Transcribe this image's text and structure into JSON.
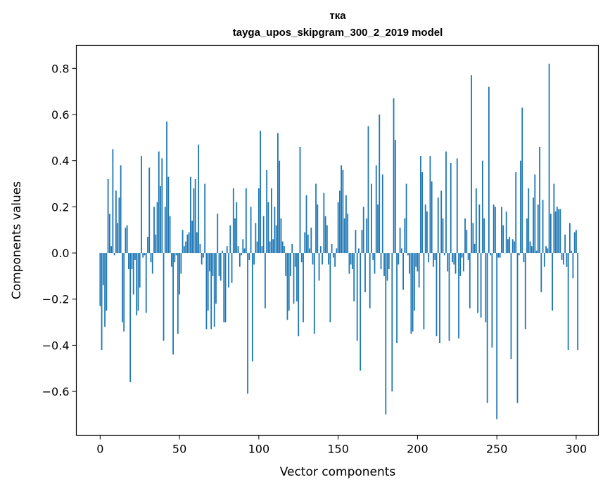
{
  "chart_data": {
    "type": "bar",
    "title": "тка",
    "subtitle": "tayga_upos_skipgram_300_2_2019 model",
    "xlabel": "Vector components",
    "ylabel": "Components values",
    "xlim": [
      -15,
      314
    ],
    "ylim": [
      -0.79,
      0.9
    ],
    "xticks": [
      0,
      50,
      100,
      150,
      200,
      250,
      300
    ],
    "yticks": [
      -0.6,
      -0.4,
      -0.2,
      0.0,
      0.2,
      0.4,
      0.6,
      0.8
    ],
    "xtick_labels": [
      "0",
      "50",
      "100",
      "150",
      "200",
      "250",
      "300"
    ],
    "ytick_labels": [
      "−0.6",
      "−0.4",
      "−0.2",
      "0.0",
      "0.2",
      "0.4",
      "0.6",
      "0.8"
    ],
    "bar_color": "#1f77b4",
    "grid": false,
    "values": [
      -0.23,
      -0.42,
      -0.14,
      -0.32,
      -0.25,
      0.32,
      0.17,
      0.03,
      0.45,
      -0.01,
      0.27,
      0.13,
      0.24,
      0.38,
      -0.3,
      -0.34,
      0.11,
      0.12,
      -0.07,
      -0.56,
      -0.07,
      -0.18,
      -0.03,
      -0.27,
      -0.25,
      -0.15,
      0.42,
      -0.02,
      -0.01,
      -0.26,
      0.07,
      0.37,
      -0.04,
      -0.09,
      0.2,
      0.08,
      0.22,
      0.44,
      0.29,
      0.41,
      -0.38,
      0.2,
      0.57,
      0.33,
      0.16,
      -0.06,
      -0.44,
      -0.04,
      -0.01,
      -0.35,
      -0.18,
      -0.09,
      0.1,
      0.03,
      0.05,
      0.08,
      0.09,
      0.33,
      0.14,
      0.28,
      0.32,
      0.09,
      0.47,
      0.04,
      -0.05,
      -0.02,
      0.3,
      -0.33,
      -0.25,
      -0.08,
      -0.33,
      -0.1,
      -0.32,
      -0.22,
      0.17,
      -0.1,
      -0.12,
      0.01,
      -0.3,
      -0.3,
      0.03,
      -0.15,
      0.12,
      -0.13,
      0.28,
      0.15,
      0.22,
      0.03,
      -0.06,
      -0.01,
      0.06,
      0.02,
      0.28,
      -0.61,
      -0.03,
      0.2,
      -0.47,
      -0.05,
      0.13,
      0.05,
      0.28,
      0.53,
      0.03,
      0.16,
      -0.24,
      0.36,
      0.22,
      0.05,
      0.28,
      0.06,
      0.2,
      0.12,
      0.52,
      0.4,
      0.15,
      0.05,
      0.03,
      -0.1,
      -0.29,
      -0.25,
      -0.1,
      0.04,
      -0.22,
      -0.06,
      -0.21,
      -0.36,
      0.46,
      -0.04,
      -0.3,
      0.09,
      0.25,
      0.08,
      0.02,
      0.11,
      -0.05,
      -0.35,
      0.3,
      0.21,
      -0.12,
      0.03,
      -0.05,
      0.26,
      0.16,
      0.12,
      -0.05,
      -0.3,
      0.04,
      -0.02,
      -0.06,
      0.02,
      0.22,
      0.27,
      0.38,
      0.36,
      0.15,
      0.25,
      0.17,
      -0.09,
      -0.05,
      -0.07,
      -0.21,
      0.1,
      -0.38,
      0.02,
      -0.51,
      0.1,
      0.2,
      -0.17,
      0.15,
      0.55,
      -0.24,
      0.3,
      -0.03,
      -0.09,
      0.38,
      0.21,
      0.6,
      -0.07,
      0.34,
      -0.1,
      -0.7,
      -0.12,
      -0.07,
      0.0,
      -0.6,
      0.67,
      0.49,
      -0.39,
      -0.05,
      0.11,
      0.02,
      -0.16,
      0.15,
      0.3,
      -0.01,
      -0.09,
      -0.35,
      -0.34,
      -0.25,
      -0.06,
      -0.08,
      -0.15,
      0.42,
      0.35,
      -0.33,
      0.21,
      0.18,
      -0.04,
      0.42,
      0.31,
      -0.06,
      -0.03,
      -0.36,
      0.24,
      -0.39,
      0.27,
      0.15,
      -0.01,
      0.44,
      -0.08,
      -0.38,
      0.39,
      -0.04,
      -0.05,
      -0.09,
      0.41,
      -0.37,
      -0.1,
      -0.02,
      -0.08,
      0.15,
      0.1,
      -0.03,
      -0.24,
      0.77,
      0.13,
      0.04,
      0.28,
      -0.26,
      0.21,
      -0.28,
      0.4,
      0.15,
      -0.3,
      -0.65,
      0.72,
      -0.01,
      -0.41,
      0.21,
      0.2,
      -0.72,
      -0.02,
      -0.02,
      0.2,
      0.12,
      0.0,
      0.18,
      0.06,
      0.07,
      -0.46,
      0.06,
      0.05,
      0.35,
      -0.65,
      -0.01,
      0.4,
      0.63,
      -0.04,
      -0.33,
      0.15,
      0.28,
      0.05,
      0.03,
      0.24,
      0.34,
      0.01,
      0.21,
      0.46,
      -0.17,
      0.23,
      -0.06,
      0.03,
      0.02,
      0.82,
      0.17,
      -0.25,
      0.3,
      0.18,
      0.2,
      0.19,
      0.19,
      -0.03,
      -0.05,
      0.08,
      -0.06,
      -0.42,
      0.13,
      0.01,
      -0.11,
      0.09,
      0.1,
      -0.42
    ]
  }
}
